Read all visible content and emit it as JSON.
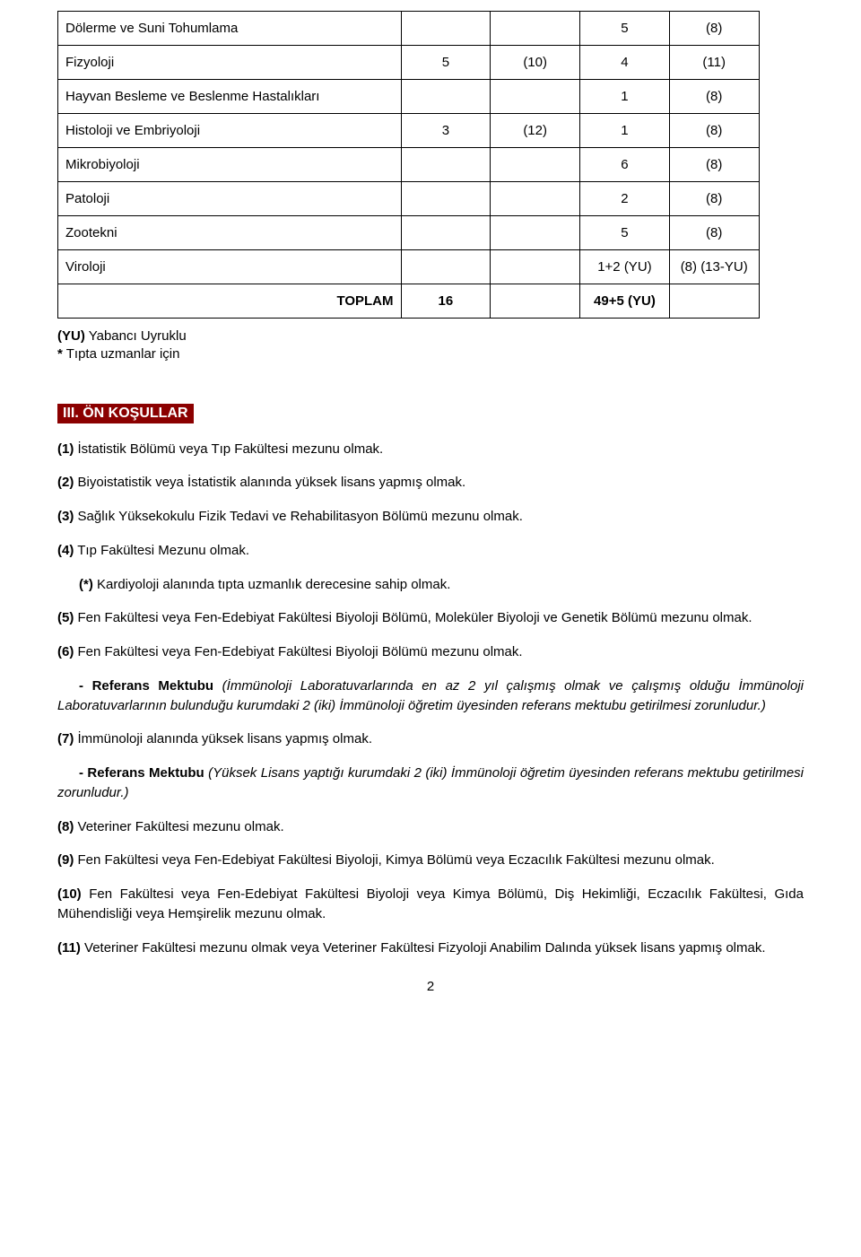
{
  "table": {
    "rows": [
      {
        "name": "Dölerme ve Suni Tohumlama",
        "c1": "",
        "c2": "",
        "c3": "5",
        "c4": "(8)"
      },
      {
        "name": "Fizyoloji",
        "c1": "5",
        "c2": "(10)",
        "c3": "4",
        "c4": "(11)"
      },
      {
        "name": "Hayvan Besleme ve Beslenme Hastalıkları",
        "c1": "",
        "c2": "",
        "c3": "1",
        "c4": "(8)"
      },
      {
        "name": "Histoloji ve Embriyoloji",
        "c1": "3",
        "c2": "(12)",
        "c3": "1",
        "c4": "(8)"
      },
      {
        "name": "Mikrobiyoloji",
        "c1": "",
        "c2": "",
        "c3": "6",
        "c4": "(8)"
      },
      {
        "name": "Patoloji",
        "c1": "",
        "c2": "",
        "c3": "2",
        "c4": "(8)"
      },
      {
        "name": "Zootekni",
        "c1": "",
        "c2": "",
        "c3": "5",
        "c4": "(8)"
      },
      {
        "name": "Viroloji",
        "c1": "",
        "c2": "",
        "c3": "1+2 (YU)",
        "c4": "(8) (13-YU)"
      }
    ],
    "total": {
      "label": "TOPLAM",
      "c1": "16",
      "c2": "",
      "c3": "49+5 (YU)",
      "c4": ""
    }
  },
  "footnotes": {
    "line1_label": "(YU)",
    "line1_text": " Yabancı Uyruklu",
    "line2_label": "*",
    "line2_text": " Tıpta uzmanlar için"
  },
  "section": {
    "heading": "III. ÖN KOŞULLAR",
    "p1_lbl": "(1)",
    "p1_txt": " İstatistik Bölümü veya Tıp Fakültesi mezunu olmak.",
    "p2_lbl": "(2)",
    "p2_txt": " Biyoistatistik veya İstatistik alanında yüksek lisans yapmış olmak.",
    "p3_lbl": "(3)",
    "p3_txt": " Sağlık Yüksekokulu Fizik Tedavi ve Rehabilitasyon Bölümü mezunu olmak.",
    "p4_lbl": "(4)",
    "p4_txt": " Tıp Fakültesi Mezunu olmak.",
    "pstar_lbl": "(*)",
    "pstar_txt": " Kardiyoloji alanında tıpta uzmanlık derecesine sahip olmak.",
    "p5_lbl": "(5)",
    "p5_txt": " Fen Fakültesi veya Fen-Edebiyat Fakültesi Biyoloji Bölümü, Moleküler Biyoloji ve Genetik Bölümü mezunu olmak.",
    "p6_lbl": "(6)",
    "p6_txt": " Fen Fakültesi veya Fen-Edebiyat Fakültesi Biyoloji Bölümü mezunu olmak.",
    "ref1_lbl": "- Referans Mektubu ",
    "ref1_it": "(İmmünoloji Laboratuvarlarında en az 2 yıl çalışmış olmak ve çalışmış olduğu İmmünoloji Laboratuvarlarının bulunduğu kurumdaki 2 (iki) İmmünoloji öğretim üyesinden referans mektubu getirilmesi zorunludur.)",
    "p7_lbl": "(7)",
    "p7_txt": " İmmünoloji alanında yüksek lisans yapmış olmak.",
    "ref2_lbl": "- Referans Mektubu ",
    "ref2_it": "(Yüksek Lisans yaptığı kurumdaki 2 (iki) İmmünoloji öğretim üyesinden referans mektubu getirilmesi zorunludur.)",
    "p8_lbl": "(8)",
    "p8_txt": " Veteriner Fakültesi mezunu olmak.",
    "p9_lbl": "(9)",
    "p9_txt": " Fen Fakültesi veya Fen-Edebiyat Fakültesi Biyoloji, Kimya Bölümü veya Eczacılık Fakültesi mezunu olmak.",
    "p10_lbl": "(10)",
    "p10_txt": " Fen Fakültesi veya Fen-Edebiyat Fakültesi Biyoloji veya Kimya Bölümü, Diş Hekimliği, Eczacılık Fakültesi, Gıda Mühendisliği veya Hemşirelik mezunu olmak.",
    "p11_lbl": "(11)",
    "p11_txt": " Veteriner Fakültesi mezunu olmak veya Veteriner Fakültesi Fizyoloji Anabilim Dalında yüksek lisans yapmış olmak."
  },
  "pageNumber": "2"
}
